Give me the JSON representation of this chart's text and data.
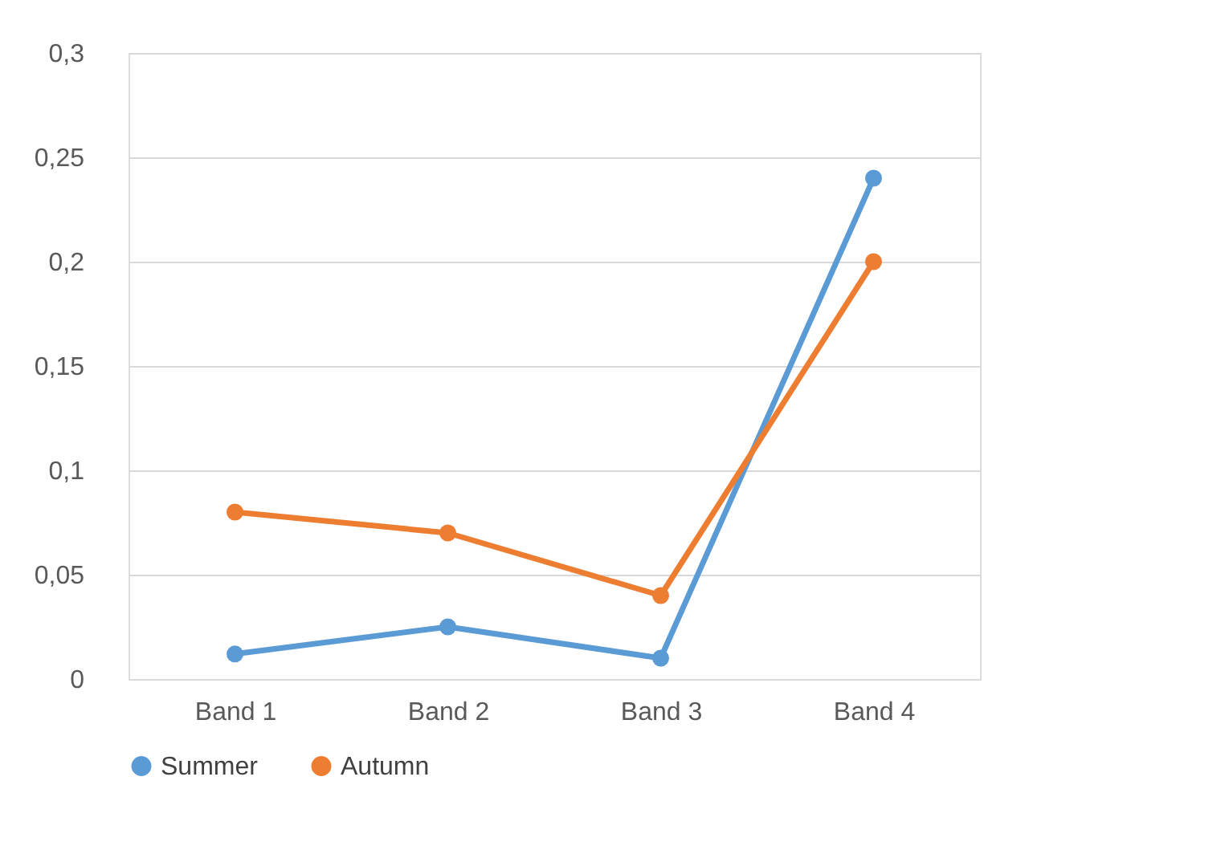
{
  "chart_data": {
    "type": "line",
    "categories": [
      "Band 1",
      "Band 2",
      "Band 3",
      "Band 4"
    ],
    "series": [
      {
        "name": "Summer",
        "color": "#5b9bd5",
        "values": [
          0.012,
          0.025,
          0.01,
          0.24
        ]
      },
      {
        "name": "Autumn",
        "color": "#ed7d31",
        "values": [
          0.08,
          0.07,
          0.04,
          0.2
        ]
      }
    ],
    "ylim": [
      0,
      0.3
    ],
    "yticks": [
      0,
      {
        "value": 0.05,
        "label": "0,05"
      },
      {
        "value": 0.1,
        "label": "0,1"
      },
      {
        "value": 0.15,
        "label": "0,15"
      },
      {
        "value": 0.2,
        "label": "0,2"
      },
      {
        "value": 0.25,
        "label": "0,25"
      },
      {
        "value": 0.3,
        "label": "0,3"
      }
    ],
    "grid": "y",
    "legend": "bottom",
    "marker": "circle",
    "line_style": "solid"
  }
}
